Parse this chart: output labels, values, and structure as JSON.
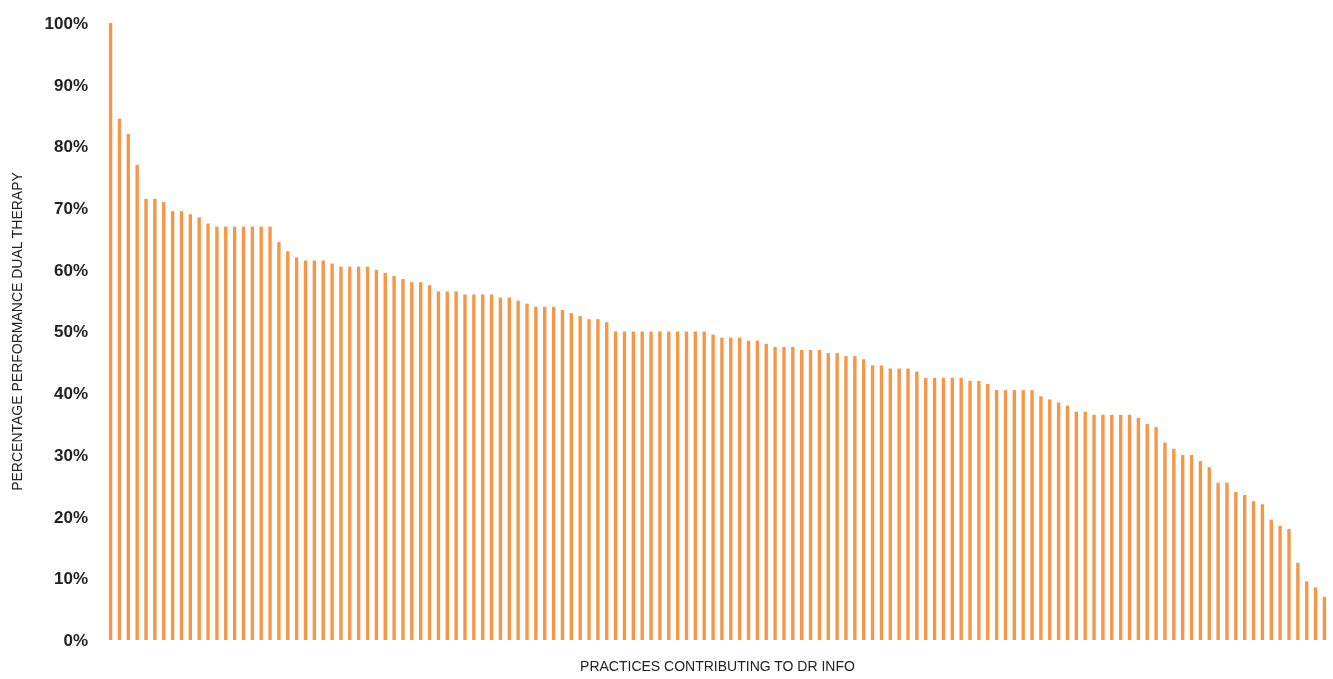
{
  "chart_data": {
    "type": "bar",
    "xlabel": "PRACTICES CONTRIBUTING TO DR INFO",
    "ylabel": "PERCENTAGE PERFORMANCE DUAL THERAPY",
    "color": "#f79646",
    "grid": false,
    "categories": [
      null,
      null,
      null,
      null,
      null,
      null,
      null,
      null,
      null,
      null,
      null,
      null,
      null,
      null,
      null,
      null,
      null,
      null,
      null,
      null,
      null,
      null,
      null,
      null,
      null,
      null,
      null,
      null,
      null,
      null,
      null,
      null,
      null,
      null,
      null,
      null,
      null,
      null,
      null,
      null,
      null,
      null,
      null,
      null,
      null,
      null,
      null,
      null,
      null,
      null,
      null,
      null,
      null,
      null,
      null,
      null,
      null,
      null,
      null,
      null,
      null,
      null,
      null,
      null,
      null,
      null,
      null,
      null,
      null,
      null,
      null,
      null,
      null,
      null,
      null,
      null,
      null,
      null,
      null,
      null,
      null,
      null,
      null,
      null,
      null,
      null,
      null,
      null,
      null,
      null,
      null,
      null,
      null,
      null,
      null,
      null,
      null,
      null,
      null,
      null,
      null,
      null,
      null,
      null,
      null,
      null,
      null,
      null,
      null,
      null,
      null,
      null,
      null,
      null,
      null,
      null,
      null,
      null,
      null,
      null,
      null,
      null,
      null,
      null,
      null,
      null,
      null,
      null,
      null,
      null,
      null,
      null,
      null,
      null,
      null,
      null,
      null,
      null
    ],
    "values": [
      100,
      84.5,
      82,
      77,
      71.5,
      71.5,
      71,
      69.5,
      69.5,
      69,
      68.5,
      67.5,
      67,
      67,
      67,
      67,
      67,
      67,
      67,
      64.5,
      63,
      62,
      61.5,
      61.5,
      61.5,
      61,
      60.5,
      60.5,
      60.5,
      60.5,
      60,
      59.5,
      59,
      58.5,
      58,
      58,
      57.5,
      56.5,
      56.5,
      56.5,
      56,
      56,
      56,
      56,
      55.5,
      55.5,
      55,
      54.5,
      54,
      54,
      54,
      53.5,
      53,
      52.5,
      52,
      52,
      51.5,
      50,
      50,
      50,
      50,
      50,
      50,
      50,
      50,
      50,
      50,
      50,
      49.5,
      49,
      49,
      49,
      48.5,
      48.5,
      48,
      47.5,
      47.5,
      47.5,
      47,
      47,
      47,
      46.5,
      46.5,
      46,
      46,
      45.5,
      44.5,
      44.5,
      44,
      44,
      44,
      43.5,
      42.5,
      42.5,
      42.5,
      42.5,
      42.5,
      42,
      42,
      41.5,
      40.5,
      40.5,
      40.5,
      40.5,
      40.5,
      39.5,
      39,
      38.5,
      38,
      37,
      37,
      36.5,
      36.5,
      36.5,
      36.5,
      36.5,
      36,
      35,
      34.5,
      32,
      31,
      30,
      30,
      29,
      28,
      25.5,
      25.5,
      24,
      23.5,
      22.5,
      22,
      19.5,
      18.5,
      18,
      12.5,
      9.5,
      8.5,
      7
    ],
    "ylim": [
      0,
      100
    ],
    "yticks": [
      {
        "value": 0,
        "label": "0%"
      },
      {
        "value": 10,
        "label": "10%"
      },
      {
        "value": 20,
        "label": "20%"
      },
      {
        "value": 30,
        "label": "30%"
      },
      {
        "value": 40,
        "label": "40%"
      },
      {
        "value": 50,
        "label": "50%"
      },
      {
        "value": 60,
        "label": "60%"
      },
      {
        "value": 70,
        "label": "70%"
      },
      {
        "value": 80,
        "label": "80%"
      },
      {
        "value": 90,
        "label": "90%"
      },
      {
        "value": 100,
        "label": "100%"
      }
    ]
  }
}
